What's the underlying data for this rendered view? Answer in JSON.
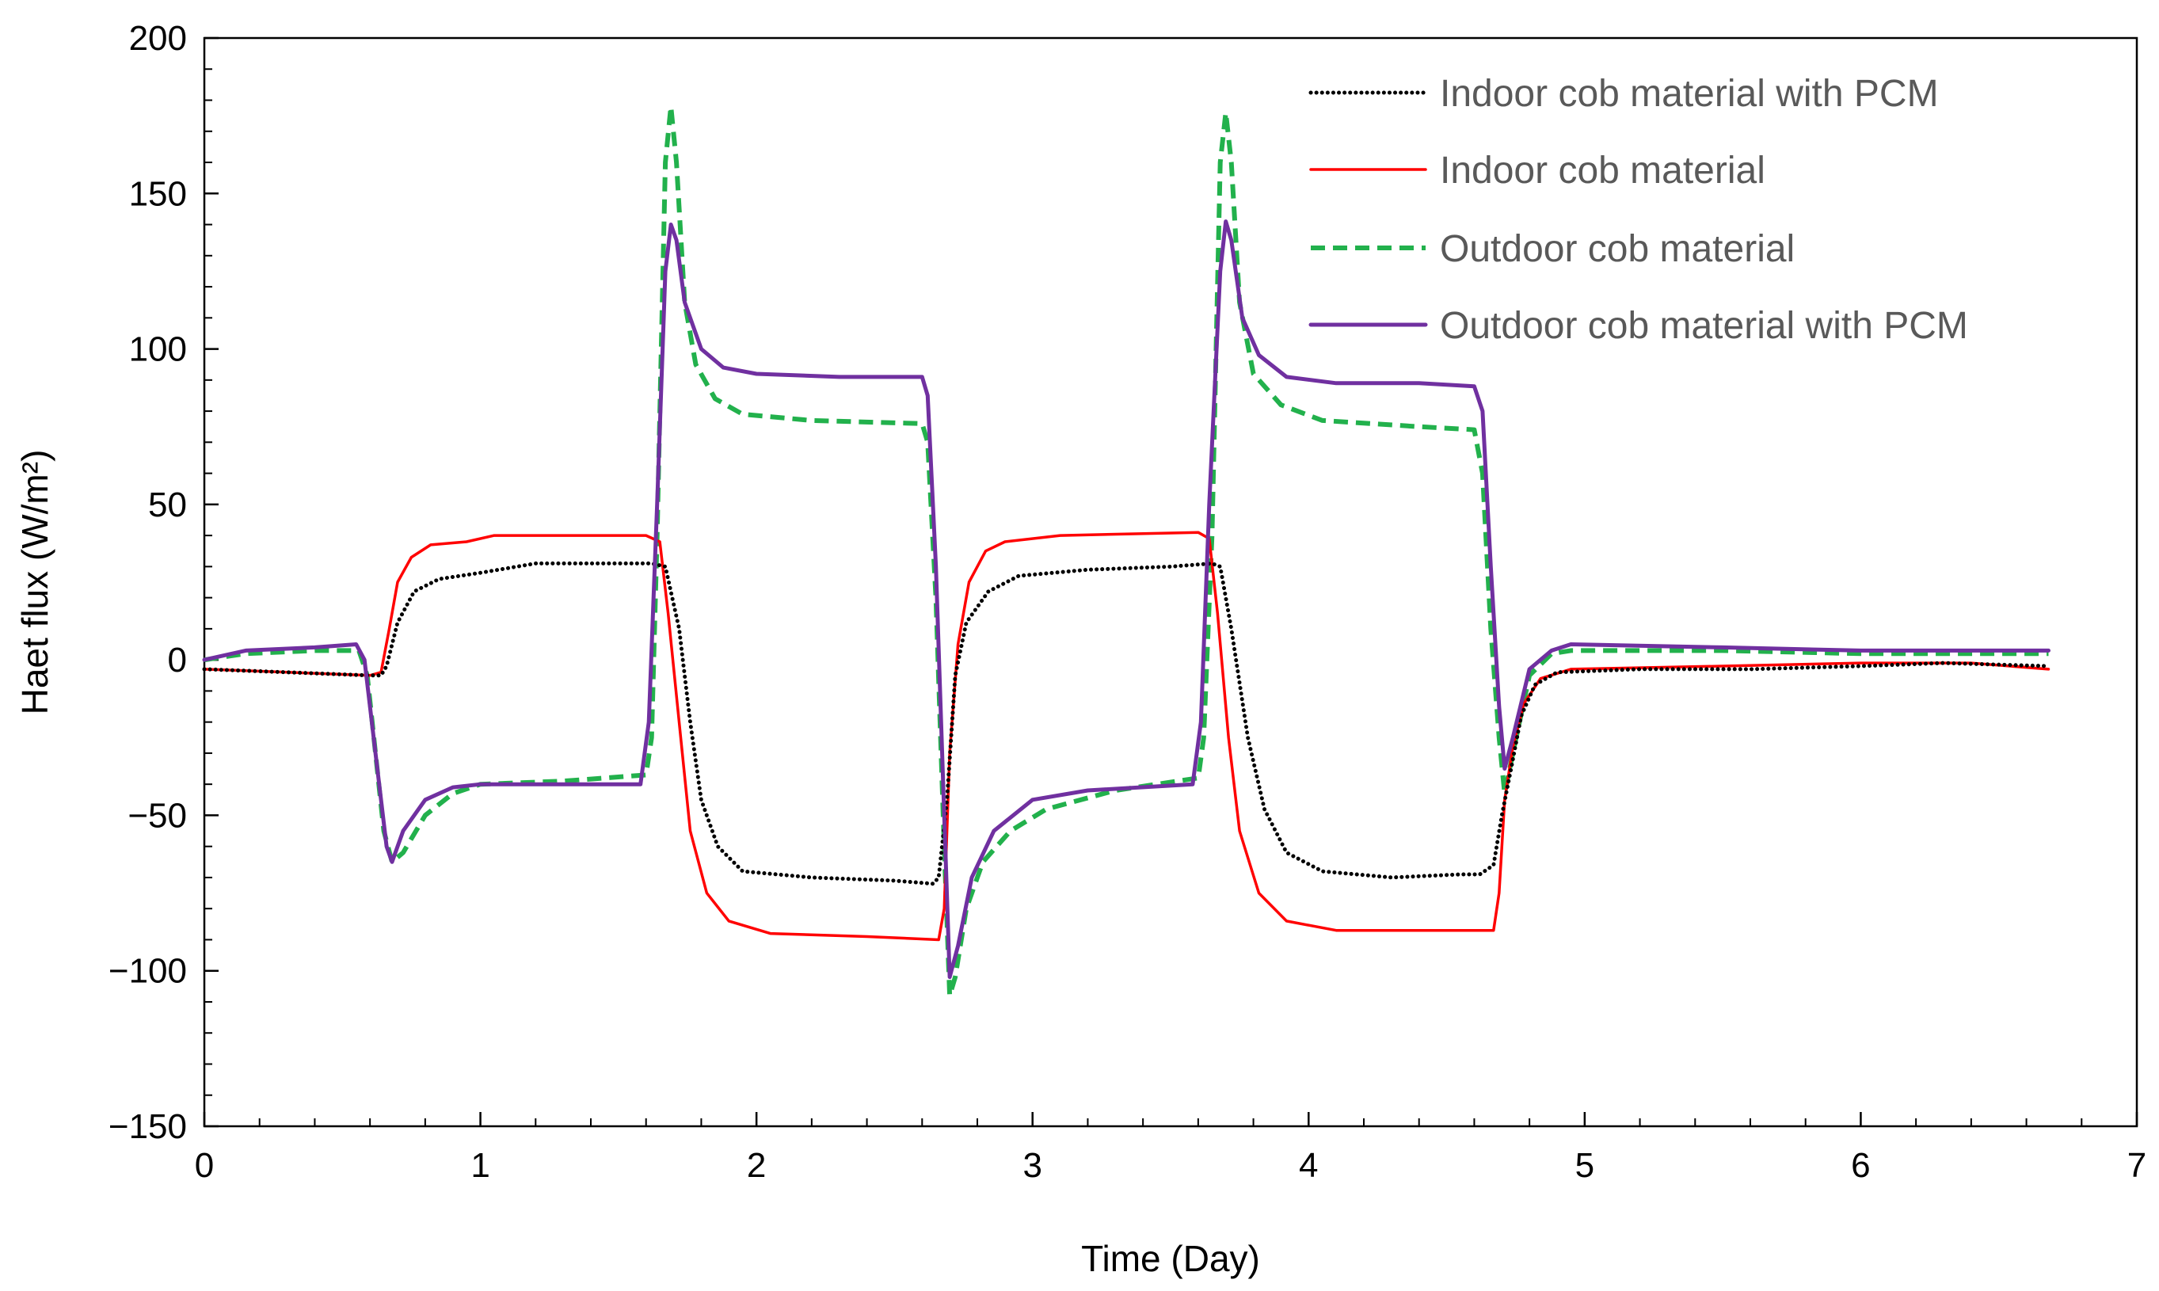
{
  "chart_data": {
    "type": "line",
    "title": "",
    "xlabel": "Time (Day)",
    "ylabel": "Haet flux (W/m²)",
    "xlim": [
      0,
      7
    ],
    "ylim": [
      -150,
      200
    ],
    "xticks": [
      0,
      1,
      2,
      3,
      4,
      5,
      6,
      7
    ],
    "yticks": [
      -150,
      -100,
      -50,
      0,
      50,
      100,
      150,
      200
    ],
    "ytick_labels": [
      "−150",
      "−100",
      "−50",
      "0",
      "50",
      "100",
      "150",
      "200"
    ],
    "legend_position": "top-right",
    "series": [
      {
        "name": "Indoor cob material with PCM",
        "color": "#000000",
        "style": "dotted",
        "points": [
          [
            0,
            -3
          ],
          [
            0.3,
            -4
          ],
          [
            0.6,
            -5
          ],
          [
            0.64,
            -5
          ],
          [
            0.66,
            -2
          ],
          [
            0.7,
            12
          ],
          [
            0.76,
            22
          ],
          [
            0.85,
            26
          ],
          [
            1,
            28
          ],
          [
            1.2,
            31
          ],
          [
            1.5,
            31
          ],
          [
            1.62,
            31
          ],
          [
            1.67,
            30
          ],
          [
            1.72,
            10
          ],
          [
            1.76,
            -20
          ],
          [
            1.8,
            -45
          ],
          [
            1.86,
            -60
          ],
          [
            1.95,
            -68
          ],
          [
            2.2,
            -70
          ],
          [
            2.5,
            -71
          ],
          [
            2.64,
            -72
          ],
          [
            2.66,
            -70
          ],
          [
            2.69,
            -45
          ],
          [
            2.72,
            -5
          ],
          [
            2.76,
            12
          ],
          [
            2.84,
            22
          ],
          [
            2.95,
            27
          ],
          [
            3.2,
            29
          ],
          [
            3.5,
            30
          ],
          [
            3.65,
            31
          ],
          [
            3.68,
            30
          ],
          [
            3.72,
            10
          ],
          [
            3.78,
            -25
          ],
          [
            3.84,
            -48
          ],
          [
            3.92,
            -62
          ],
          [
            4.05,
            -68
          ],
          [
            4.3,
            -70
          ],
          [
            4.55,
            -69
          ],
          [
            4.62,
            -69
          ],
          [
            4.67,
            -66
          ],
          [
            4.7,
            -50
          ],
          [
            4.74,
            -32
          ],
          [
            4.77,
            -18
          ],
          [
            4.82,
            -8
          ],
          [
            4.9,
            -4
          ],
          [
            5.2,
            -3
          ],
          [
            5.6,
            -3
          ],
          [
            6,
            -2
          ],
          [
            6.3,
            -1
          ],
          [
            6.68,
            -2
          ]
        ]
      },
      {
        "name": "Indoor cob material",
        "color": "#ff0000",
        "style": "solid",
        "points": [
          [
            0,
            -3
          ],
          [
            0.3,
            -4
          ],
          [
            0.6,
            -5
          ],
          [
            0.64,
            -4
          ],
          [
            0.67,
            10
          ],
          [
            0.7,
            25
          ],
          [
            0.75,
            33
          ],
          [
            0.82,
            37
          ],
          [
            0.95,
            38
          ],
          [
            1.05,
            40
          ],
          [
            1.3,
            40
          ],
          [
            1.6,
            40
          ],
          [
            1.65,
            38
          ],
          [
            1.68,
            15
          ],
          [
            1.72,
            -20
          ],
          [
            1.76,
            -55
          ],
          [
            1.82,
            -75
          ],
          [
            1.9,
            -84
          ],
          [
            2.05,
            -88
          ],
          [
            2.4,
            -89
          ],
          [
            2.66,
            -90
          ],
          [
            2.68,
            -80
          ],
          [
            2.7,
            -30
          ],
          [
            2.73,
            5
          ],
          [
            2.77,
            25
          ],
          [
            2.83,
            35
          ],
          [
            2.9,
            38
          ],
          [
            3.1,
            40
          ],
          [
            3.6,
            41
          ],
          [
            3.64,
            39
          ],
          [
            3.67,
            15
          ],
          [
            3.71,
            -25
          ],
          [
            3.75,
            -55
          ],
          [
            3.82,
            -75
          ],
          [
            3.92,
            -84
          ],
          [
            4.1,
            -87
          ],
          [
            4.4,
            -87
          ],
          [
            4.67,
            -87
          ],
          [
            4.69,
            -75
          ],
          [
            4.71,
            -45
          ],
          [
            4.74,
            -28
          ],
          [
            4.78,
            -14
          ],
          [
            4.84,
            -6
          ],
          [
            4.95,
            -3
          ],
          [
            5.5,
            -2
          ],
          [
            6,
            -1
          ],
          [
            6.4,
            -1
          ],
          [
            6.68,
            -3
          ]
        ]
      },
      {
        "name": "Outdoor cob material",
        "color": "#22b14c",
        "style": "dashed",
        "points": [
          [
            0,
            0
          ],
          [
            0.15,
            2
          ],
          [
            0.4,
            3
          ],
          [
            0.56,
            3
          ],
          [
            0.59,
            -5
          ],
          [
            0.62,
            -30
          ],
          [
            0.65,
            -55
          ],
          [
            0.68,
            -65
          ],
          [
            0.72,
            -62
          ],
          [
            0.8,
            -50
          ],
          [
            0.9,
            -43
          ],
          [
            1,
            -40
          ],
          [
            1.3,
            -39
          ],
          [
            1.6,
            -37
          ],
          [
            1.62,
            -25
          ],
          [
            1.64,
            40
          ],
          [
            1.67,
            160
          ],
          [
            1.69,
            178
          ],
          [
            1.71,
            160
          ],
          [
            1.74,
            115
          ],
          [
            1.78,
            95
          ],
          [
            1.85,
            84
          ],
          [
            1.95,
            79
          ],
          [
            2.2,
            77
          ],
          [
            2.6,
            76
          ],
          [
            2.62,
            70
          ],
          [
            2.65,
            20
          ],
          [
            2.68,
            -60
          ],
          [
            2.7,
            -108
          ],
          [
            2.72,
            -102
          ],
          [
            2.76,
            -80
          ],
          [
            2.82,
            -65
          ],
          [
            2.92,
            -55
          ],
          [
            3.05,
            -48
          ],
          [
            3.3,
            -42
          ],
          [
            3.6,
            -38
          ],
          [
            3.62,
            -25
          ],
          [
            3.65,
            40
          ],
          [
            3.68,
            160
          ],
          [
            3.7,
            176
          ],
          [
            3.72,
            160
          ],
          [
            3.75,
            115
          ],
          [
            3.8,
            92
          ],
          [
            3.9,
            82
          ],
          [
            4.05,
            77
          ],
          [
            4.4,
            75
          ],
          [
            4.6,
            74
          ],
          [
            4.63,
            60
          ],
          [
            4.66,
            10
          ],
          [
            4.69,
            -25
          ],
          [
            4.71,
            -43
          ],
          [
            4.74,
            -30
          ],
          [
            4.8,
            -5
          ],
          [
            4.88,
            2
          ],
          [
            4.95,
            3
          ],
          [
            5.5,
            3
          ],
          [
            6,
            2
          ],
          [
            6.5,
            2
          ],
          [
            6.68,
            2
          ]
        ]
      },
      {
        "name": "Outdoor cob material with PCM",
        "color": "#7030a0",
        "style": "solid",
        "points": [
          [
            0,
            0
          ],
          [
            0.15,
            3
          ],
          [
            0.4,
            4
          ],
          [
            0.55,
            5
          ],
          [
            0.58,
            0
          ],
          [
            0.62,
            -30
          ],
          [
            0.66,
            -60
          ],
          [
            0.68,
            -65
          ],
          [
            0.72,
            -55
          ],
          [
            0.8,
            -45
          ],
          [
            0.9,
            -41
          ],
          [
            1,
            -40
          ],
          [
            1.3,
            -40
          ],
          [
            1.58,
            -40
          ],
          [
            1.61,
            -20
          ],
          [
            1.64,
            50
          ],
          [
            1.67,
            125
          ],
          [
            1.69,
            140
          ],
          [
            1.71,
            135
          ],
          [
            1.74,
            115
          ],
          [
            1.8,
            100
          ],
          [
            1.88,
            94
          ],
          [
            2,
            92
          ],
          [
            2.3,
            91
          ],
          [
            2.6,
            91
          ],
          [
            2.62,
            85
          ],
          [
            2.65,
            30
          ],
          [
            2.68,
            -50
          ],
          [
            2.7,
            -102
          ],
          [
            2.73,
            -92
          ],
          [
            2.78,
            -70
          ],
          [
            2.86,
            -55
          ],
          [
            3,
            -45
          ],
          [
            3.2,
            -42
          ],
          [
            3.58,
            -40
          ],
          [
            3.61,
            -20
          ],
          [
            3.64,
            50
          ],
          [
            3.68,
            125
          ],
          [
            3.7,
            141
          ],
          [
            3.72,
            135
          ],
          [
            3.76,
            110
          ],
          [
            3.82,
            98
          ],
          [
            3.92,
            91
          ],
          [
            4.1,
            89
          ],
          [
            4.4,
            89
          ],
          [
            4.6,
            88
          ],
          [
            4.63,
            80
          ],
          [
            4.66,
            30
          ],
          [
            4.69,
            -15
          ],
          [
            4.71,
            -35
          ],
          [
            4.74,
            -25
          ],
          [
            4.8,
            -3
          ],
          [
            4.88,
            3
          ],
          [
            4.95,
            5
          ],
          [
            5.5,
            4
          ],
          [
            6,
            3
          ],
          [
            6.68,
            3
          ]
        ]
      }
    ]
  }
}
